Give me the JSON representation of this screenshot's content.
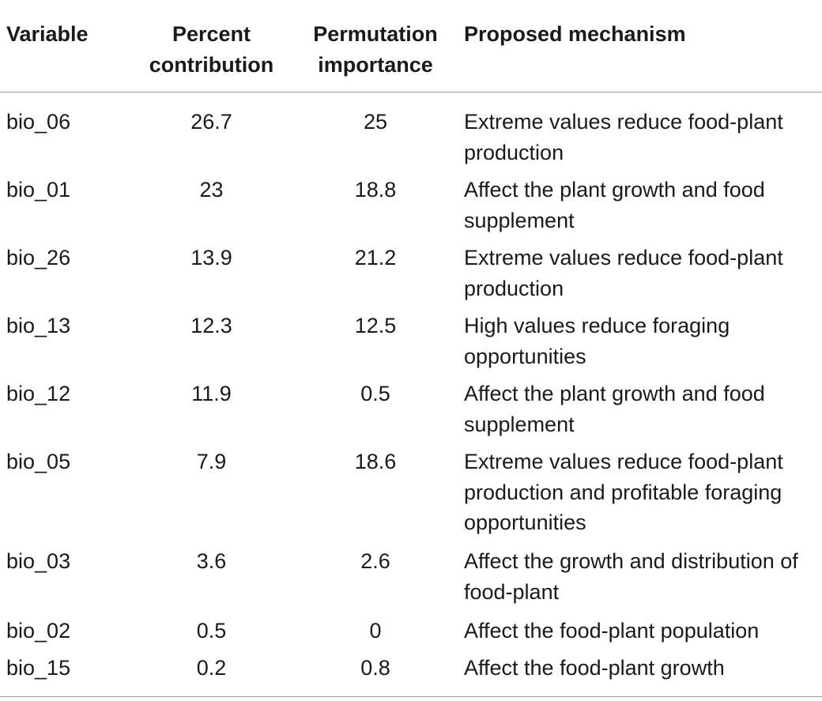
{
  "table": {
    "headers": {
      "variable": "Variable",
      "percent": [
        "Percent",
        "contribution"
      ],
      "permutation": [
        "Permutation",
        "importance"
      ],
      "mechanism": "Proposed mechanism"
    },
    "rows": [
      {
        "variable": "bio_06",
        "percent": "26.7",
        "permutation": "25",
        "mechanism": [
          "Extreme values reduce food-plant",
          "production"
        ]
      },
      {
        "variable": "bio_01",
        "percent": "23",
        "permutation": "18.8",
        "mechanism": [
          "Affect the plant growth and food",
          "supplement"
        ]
      },
      {
        "variable": "bio_26",
        "percent": "13.9",
        "permutation": "21.2",
        "mechanism": [
          "Extreme values reduce food-plant",
          "production"
        ]
      },
      {
        "variable": "bio_13",
        "percent": "12.3",
        "permutation": "12.5",
        "mechanism": [
          "High values reduce foraging",
          "opportunities"
        ]
      },
      {
        "variable": "bio_12",
        "percent": "11.9",
        "permutation": "0.5",
        "mechanism": [
          "Affect the plant growth and food",
          "supplement"
        ]
      },
      {
        "variable": "bio_05",
        "percent": "7.9",
        "permutation": "18.6",
        "mechanism": [
          "Extreme values reduce food-plant",
          "production and profitable foraging",
          "opportunities"
        ]
      },
      {
        "variable": "bio_03",
        "percent": "3.6",
        "permutation": "2.6",
        "mechanism": [
          "Affect the growth and distribution of",
          "food-plant"
        ]
      },
      {
        "variable": "bio_02",
        "percent": "0.5",
        "permutation": "0",
        "mechanism": [
          "Affect the food-plant population"
        ]
      },
      {
        "variable": "bio_15",
        "percent": "0.2",
        "permutation": "0.8",
        "mechanism": [
          "Affect the food-plant growth"
        ]
      }
    ]
  }
}
